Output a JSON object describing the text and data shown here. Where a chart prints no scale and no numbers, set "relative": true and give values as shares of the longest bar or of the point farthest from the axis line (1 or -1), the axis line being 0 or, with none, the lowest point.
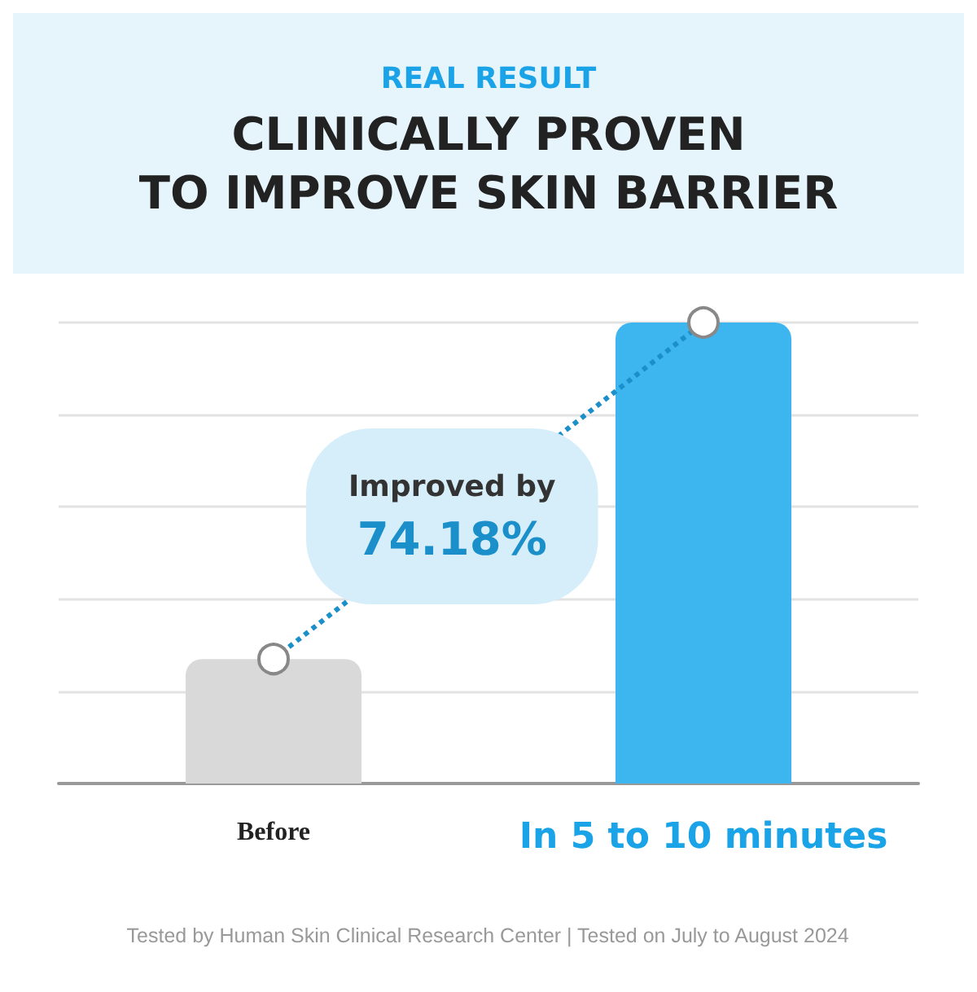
{
  "chart_data": {
    "type": "bar",
    "subtitle": "REAL RESULT",
    "title": "CLINICALLY PROVEN\nTO IMPROVE SKIN BARRIER",
    "categories": [
      "Before",
      "In 5 to 10 minutes"
    ],
    "series": [
      {
        "values": [
          0.27,
          1
        ],
        "colors": [
          "#d9d9d9",
          "#3db5ee"
        ]
      },
      {
        "type": "line",
        "values": [
          0.27,
          1
        ],
        "color": "#1b8fc9",
        "line_style": "dotted",
        "marker": "circle"
      }
    ],
    "relative": true,
    "grid": "y",
    "annotations": [
      "Improved by 74.18%",
      "Tested by Human Skin Clinical Research Center | Tested on July to August 2024"
    ]
  }
}
